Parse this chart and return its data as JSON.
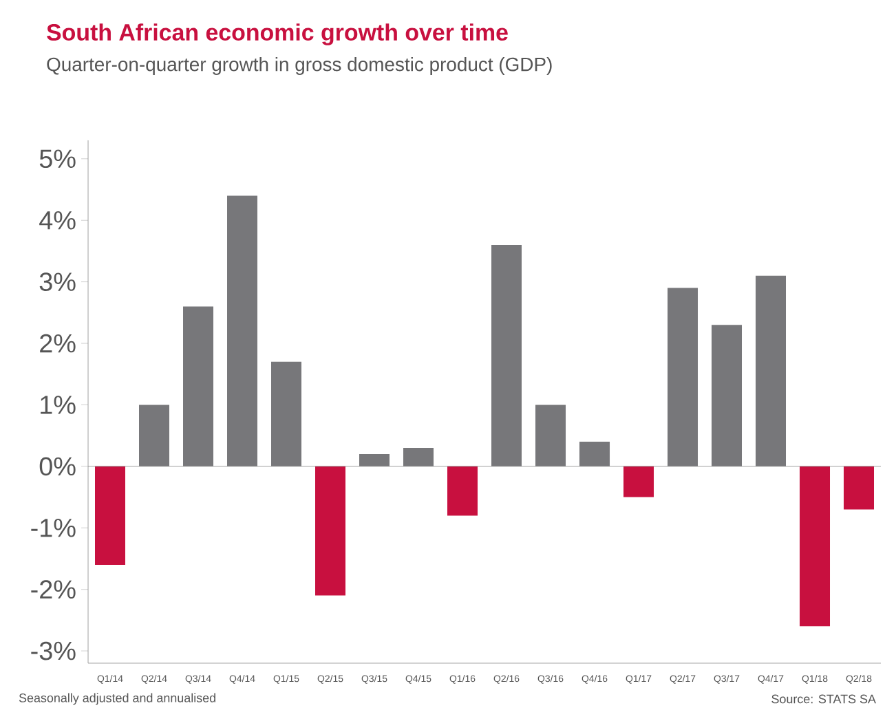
{
  "chart_data": {
    "type": "bar",
    "title": "South African economic growth over time",
    "subtitle": "Quarter-on-quarter growth in gross domestic product (GDP)",
    "categories": [
      "Q1/14",
      "Q2/14",
      "Q3/14",
      "Q4/14",
      "Q1/15",
      "Q2/15",
      "Q3/15",
      "Q4/15",
      "Q1/16",
      "Q2/16",
      "Q3/16",
      "Q4/16",
      "Q1/17",
      "Q2/17",
      "Q3/17",
      "Q4/17",
      "Q1/18",
      "Q2/18"
    ],
    "values": [
      -1.6,
      1.0,
      2.6,
      4.4,
      1.7,
      -2.1,
      0.2,
      0.3,
      -0.8,
      3.6,
      1.0,
      0.4,
      -0.5,
      2.9,
      2.3,
      3.1,
      -2.6,
      -0.7
    ],
    "colors": [
      "#c8103f",
      "#77777a",
      "#77777a",
      "#77777a",
      "#77777a",
      "#c8103f",
      "#77777a",
      "#77777a",
      "#c8103f",
      "#77777a",
      "#77777a",
      "#77777a",
      "#c8103f",
      "#77777a",
      "#77777a",
      "#77777a",
      "#c8103f",
      "#c8103f"
    ],
    "ylim": [
      -3.2,
      5.3
    ],
    "yticks": [
      {
        "value": -3,
        "label": "-3%"
      },
      {
        "value": -2,
        "label": "-2%"
      },
      {
        "value": -1,
        "label": "-1%"
      },
      {
        "value": 0,
        "label": "0%"
      },
      {
        "value": 1,
        "label": "1%"
      },
      {
        "value": 2,
        "label": "2%"
      },
      {
        "value": 3,
        "label": "3%"
      },
      {
        "value": 4,
        "label": "4%"
      },
      {
        "value": 5,
        "label": "5%"
      }
    ],
    "annotations": [
      "Seasonally adjusted and annualised",
      "Source: STATS SA"
    ]
  }
}
